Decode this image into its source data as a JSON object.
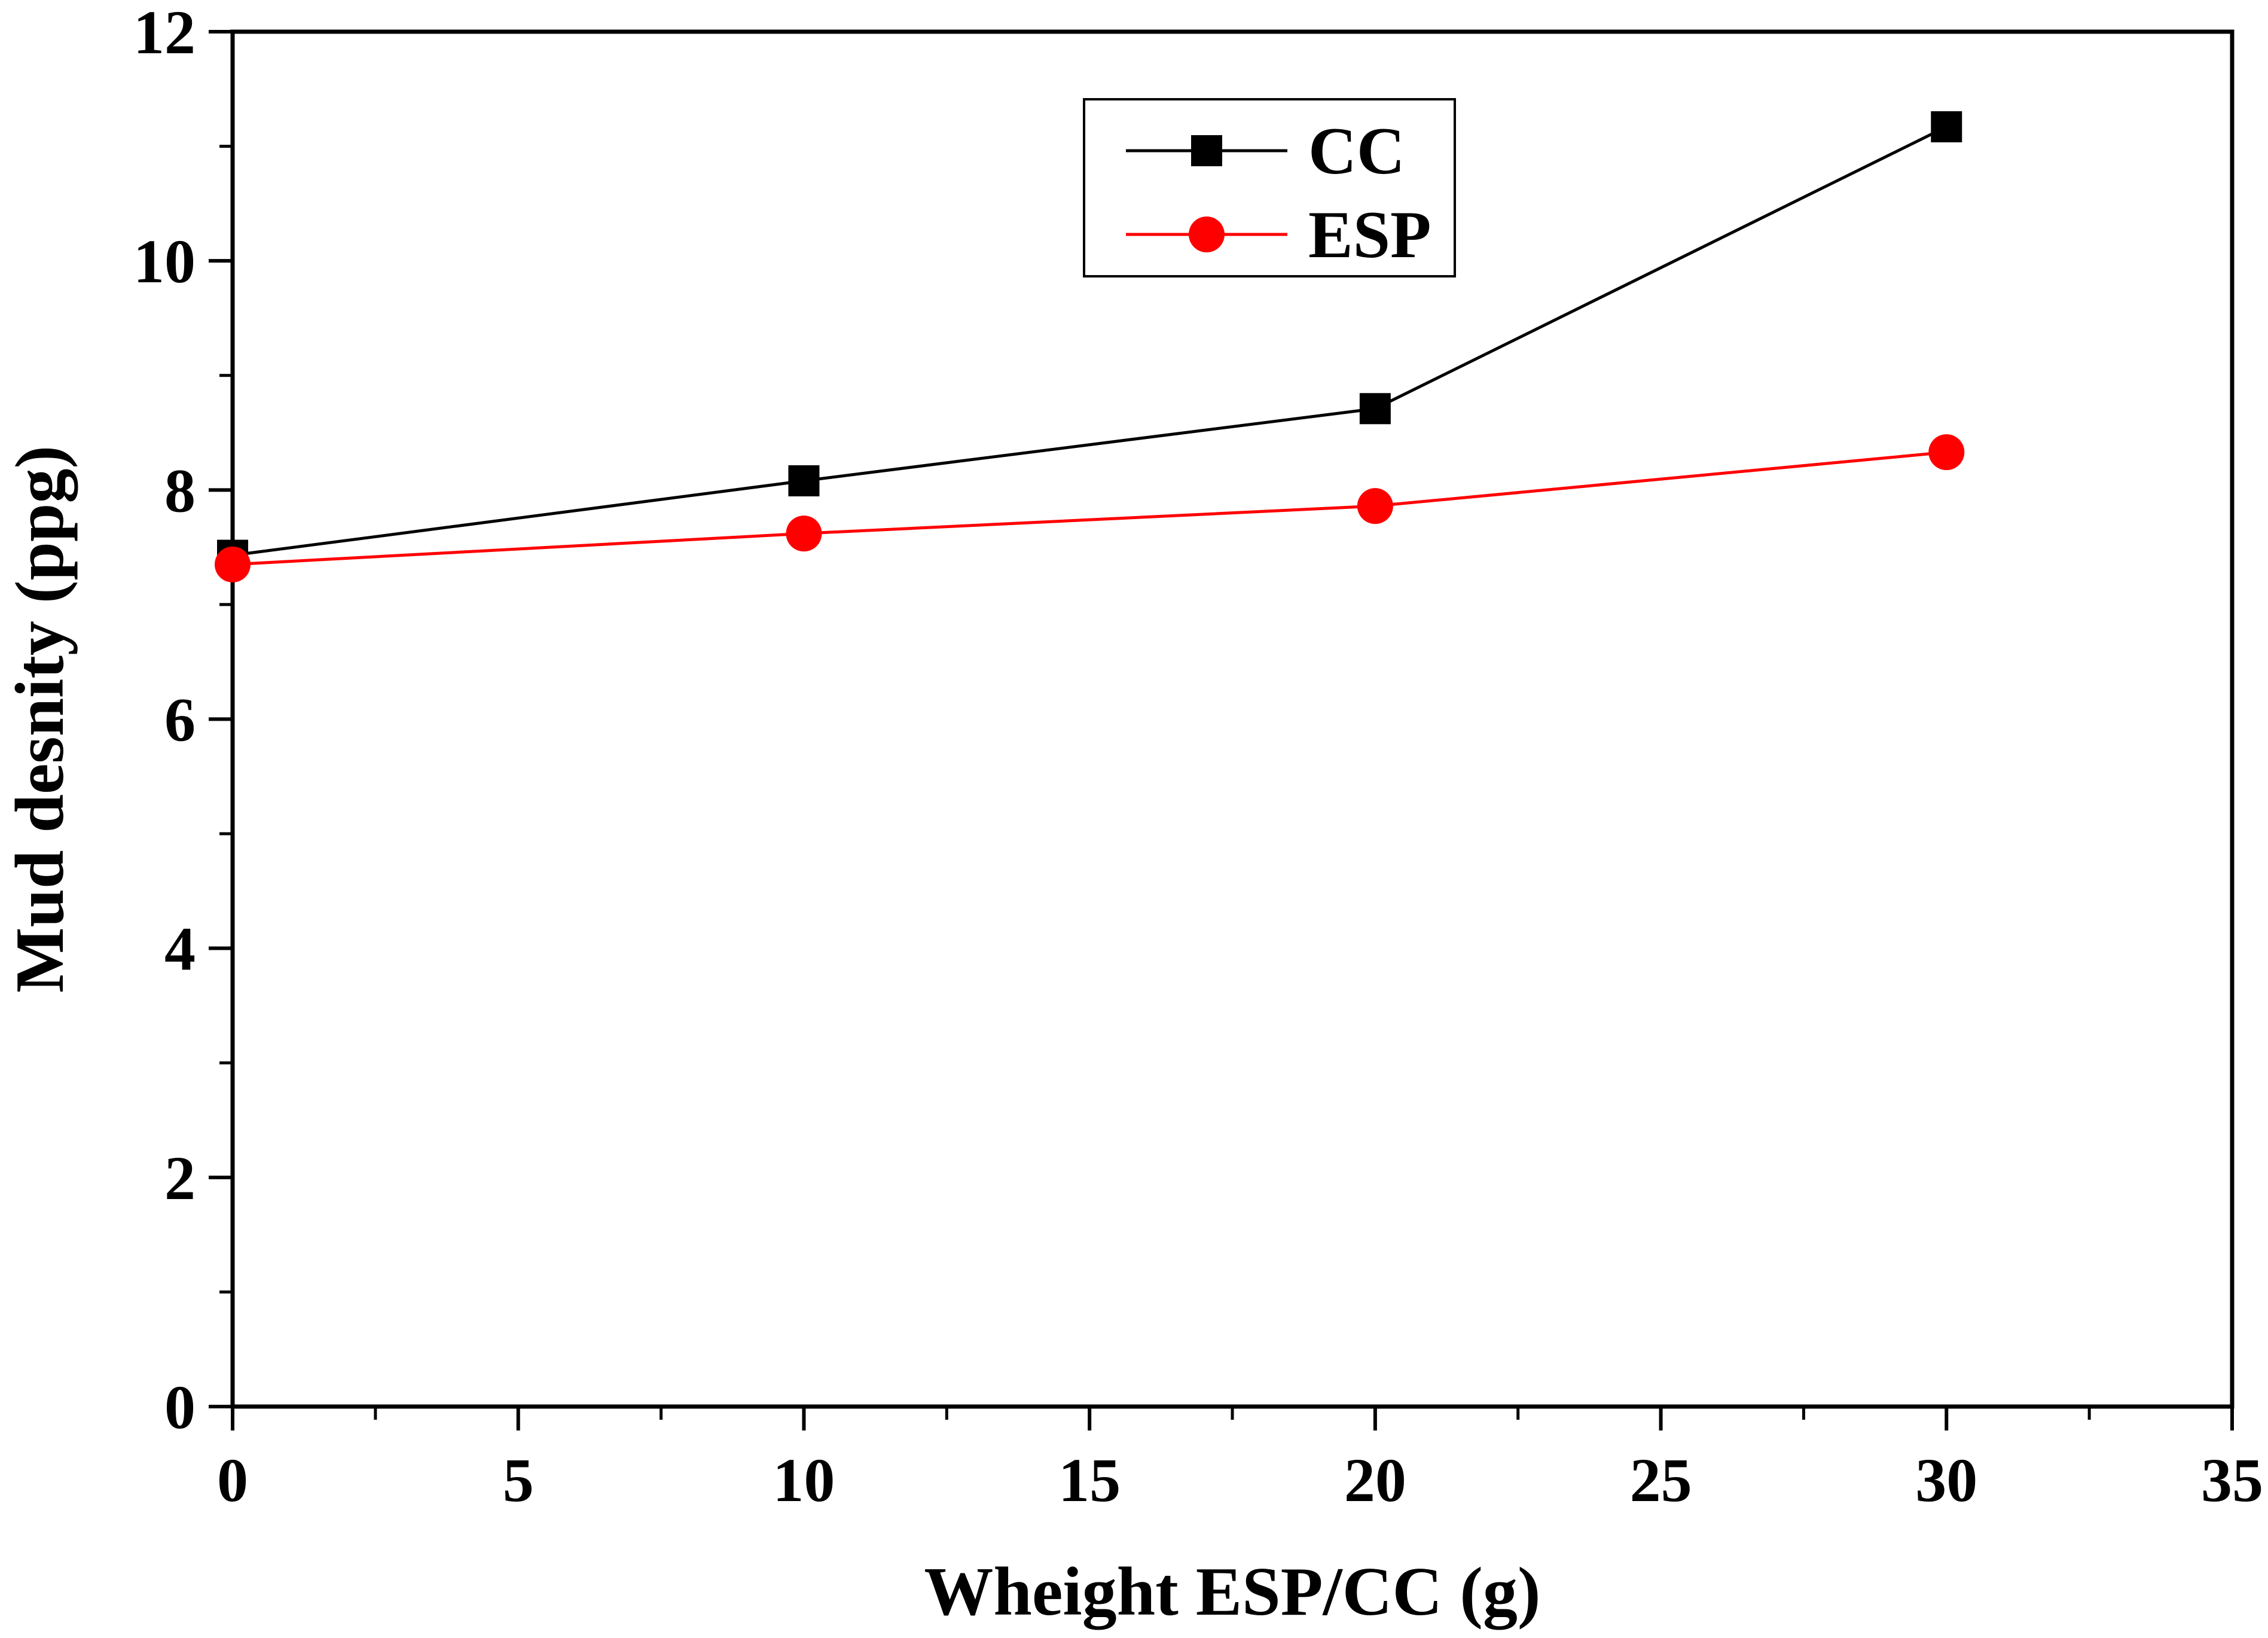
{
  "chart_data": {
    "type": "line",
    "title": "",
    "xlabel": "Wheight ESP/CC (g)",
    "ylabel": "Mud desnity (ppg)",
    "xlim": [
      0,
      35
    ],
    "ylim": [
      0,
      12
    ],
    "x_ticks": [
      "0",
      "5",
      "10",
      "15",
      "20",
      "25",
      "30",
      "35"
    ],
    "y_ticks": [
      "0",
      "2",
      "4",
      "6",
      "8",
      "10",
      "12"
    ],
    "x_tick_values": [
      0,
      5,
      10,
      15,
      20,
      25,
      30,
      35
    ],
    "y_tick_values": [
      0,
      2,
      4,
      6,
      8,
      10,
      12
    ],
    "grid": false,
    "legend_position": "top-center",
    "series": [
      {
        "name": "CC",
        "color": "#000000",
        "marker": "square",
        "x": [
          0,
          10,
          20,
          30
        ],
        "values": [
          7.43,
          8.08,
          8.71,
          11.17
        ]
      },
      {
        "name": "ESP",
        "color": "#ff0000",
        "marker": "circle",
        "x": [
          0,
          10,
          20,
          30
        ],
        "values": [
          7.35,
          7.62,
          7.86,
          8.33
        ]
      }
    ]
  }
}
